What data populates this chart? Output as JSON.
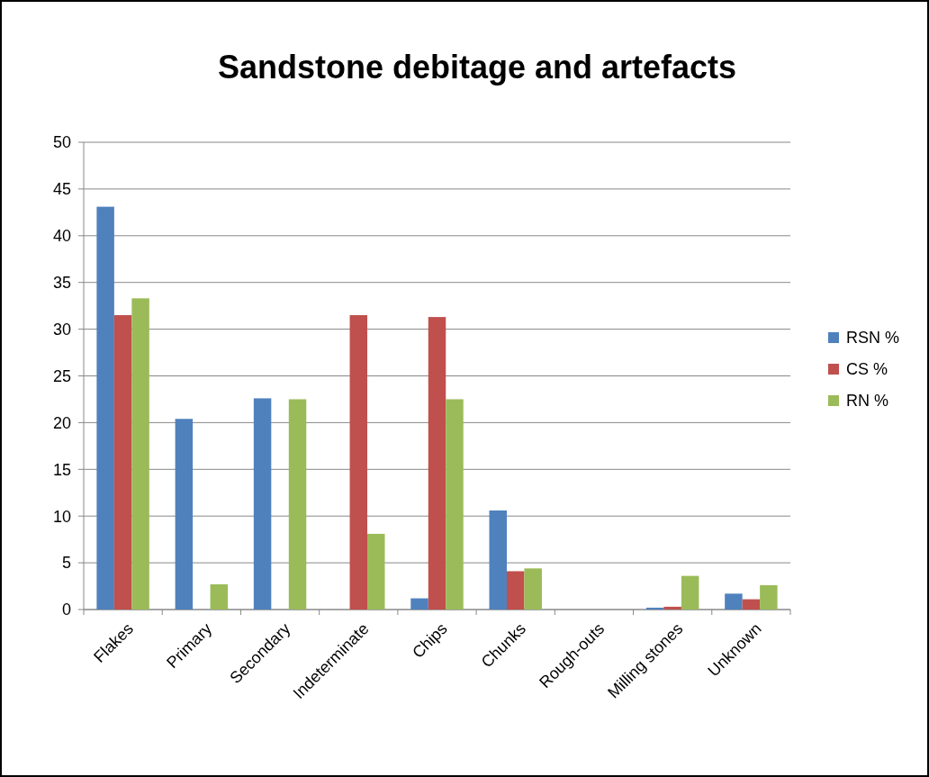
{
  "chart_data": {
    "type": "bar",
    "title": "Sandstone debitage and artefacts",
    "categories": [
      "Flakes",
      "Primary",
      "Secondary",
      "Indeterminate",
      "Chips",
      "Chunks",
      "Rough-outs",
      "Milling stones",
      "Unknown"
    ],
    "series": [
      {
        "name": "RSN %",
        "color": "#4f81bd",
        "values": [
          43.1,
          20.4,
          22.6,
          0,
          1.2,
          10.6,
          0,
          0.2,
          1.7
        ]
      },
      {
        "name": "CS %",
        "color": "#c0504d",
        "values": [
          31.5,
          0,
          0,
          31.5,
          31.3,
          4.1,
          0,
          0.3,
          1.1
        ]
      },
      {
        "name": "RN %",
        "color": "#9bbb59",
        "values": [
          33.3,
          2.7,
          22.5,
          8.1,
          22.5,
          4.4,
          0,
          3.6,
          2.6
        ]
      }
    ],
    "ylim": [
      0,
      50
    ],
    "yticks": [
      0,
      5,
      10,
      15,
      20,
      25,
      30,
      35,
      40,
      45,
      50
    ],
    "grid": "y",
    "legend": "right"
  }
}
